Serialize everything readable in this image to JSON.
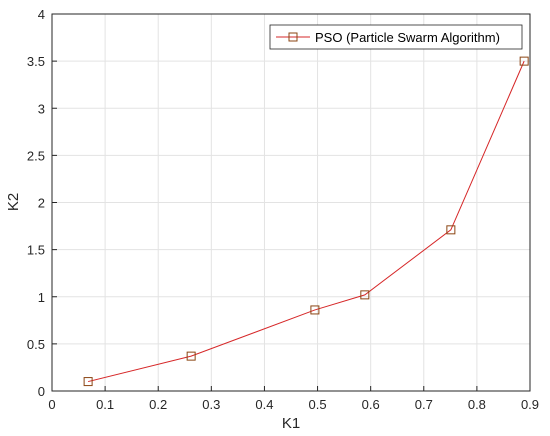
{
  "chart_data": {
    "type": "line",
    "title": "",
    "xlabel": "K1",
    "ylabel": "K2",
    "xlim": [
      0,
      0.9
    ],
    "ylim": [
      0,
      4
    ],
    "xticks": [
      0,
      0.1,
      0.2,
      0.3,
      0.4,
      0.5,
      0.6,
      0.7,
      0.8,
      0.9
    ],
    "yticks": [
      0,
      0.5,
      1,
      1.5,
      2,
      2.5,
      3,
      3.5,
      4
    ],
    "xtick_labels": [
      "0",
      "0.1",
      "0.2",
      "0.3",
      "0.4",
      "0.5",
      "0.6",
      "0.7",
      "0.8",
      "0.9"
    ],
    "ytick_labels": [
      "0",
      "0.5",
      "1",
      "1.5",
      "2",
      "2.5",
      "3",
      "3.5",
      "4"
    ],
    "grid": true,
    "legend_position": "top-right",
    "series": [
      {
        "name": "PSO (Particle Swarm Algorithm)",
        "color": "#d62728",
        "marker": "square",
        "marker_edge_color": "#8b4513",
        "x": [
          0.068,
          0.262,
          0.495,
          0.589,
          0.751,
          0.889
        ],
        "y": [
          0.1,
          0.37,
          0.86,
          1.02,
          1.71,
          3.5
        ]
      }
    ]
  }
}
